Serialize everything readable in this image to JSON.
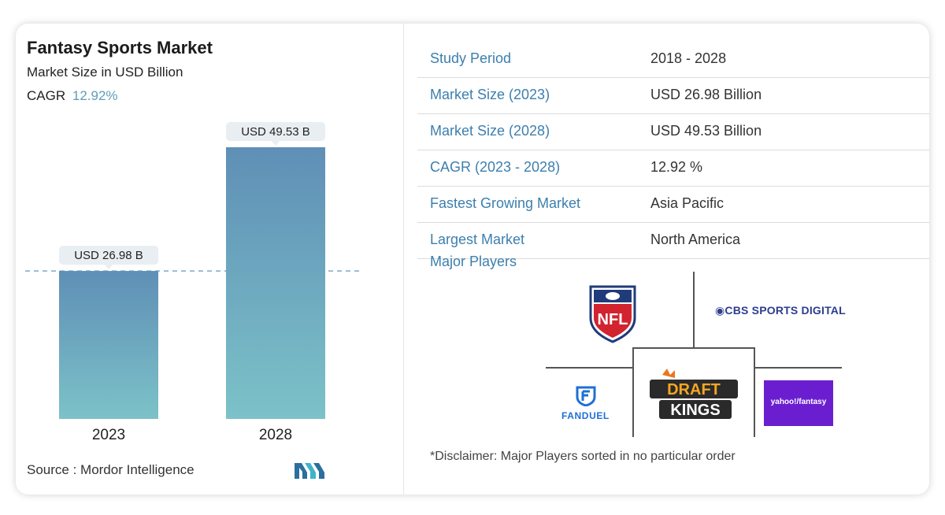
{
  "header": {
    "title": "Fantasy Sports Market",
    "subtitle": "Market Size in USD Billion",
    "cagr_label": "CAGR",
    "cagr_value": "12.92%"
  },
  "chart_data": {
    "type": "bar",
    "categories": [
      "2023",
      "2028"
    ],
    "values": [
      26.98,
      49.53
    ],
    "data_labels": [
      "USD 26.98 B",
      "USD 49.53 B"
    ],
    "title": "Fantasy Sports Market",
    "subtitle": "Market Size in USD Billion",
    "xlabel": "",
    "ylabel": "",
    "ylim": [
      0,
      49.53
    ],
    "grid": false,
    "colors": {
      "bar_top": "#5f8fb6",
      "bar_bottom": "#7cc2c8",
      "reference_line": "#7fa7c9"
    }
  },
  "footer": {
    "source": "Source :  Mordor Intelligence",
    "logo_icon": "mordor-intelligence-logo-icon"
  },
  "stats": [
    {
      "label": "Study Period",
      "value": "2018 - 2028"
    },
    {
      "label": "Market Size (2023)",
      "value": "USD 26.98 Billion"
    },
    {
      "label": "Market Size (2028)",
      "value": "USD 49.53 Billion"
    },
    {
      "label": "CAGR (2023 - 2028)",
      "value": "12.92 %"
    },
    {
      "label": "Fastest Growing Market",
      "value": "Asia Pacific"
    },
    {
      "label": "Largest Market",
      "value": "North America"
    }
  ],
  "players": {
    "label": "Major Players",
    "logos": [
      "NFL",
      "CBS SPORTS DIGITAL",
      "FANDUEL",
      "DRAFT KINGS",
      "yahoo!fantasy"
    ],
    "disclaimer": "*Disclaimer: Major Players sorted in no particular order"
  },
  "colors": {
    "accent": "#3c7fae",
    "cagr": "#5f9cb8"
  }
}
